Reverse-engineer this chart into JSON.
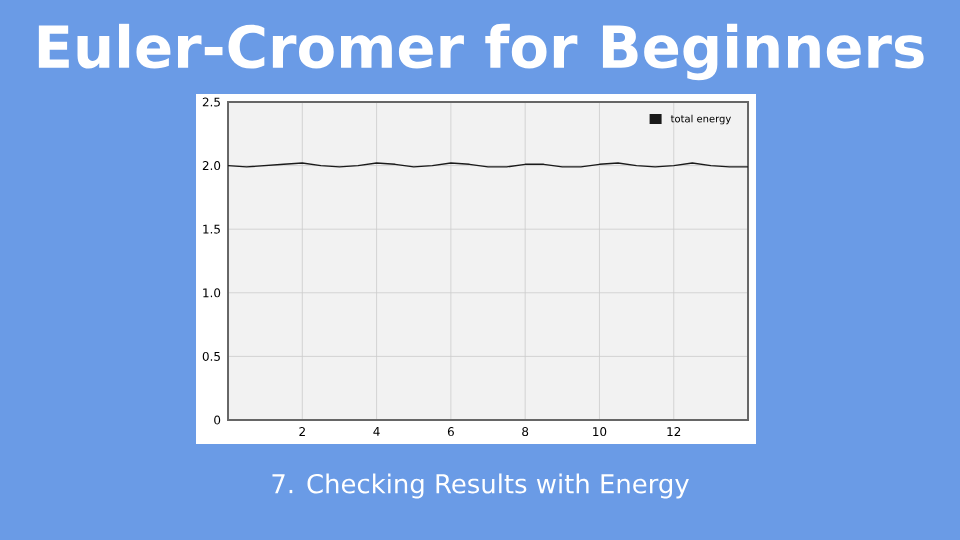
{
  "chart_data": {
    "type": "line",
    "title": "Euler-Cromer for Beginners",
    "subtitle": "7. Checking Results with Energy",
    "series": [
      {
        "name": "total energy",
        "color": "#1a1a1a",
        "x": [
          0,
          0.5,
          1,
          1.5,
          2,
          2.5,
          3,
          3.5,
          4,
          4.5,
          5,
          5.5,
          6,
          6.5,
          7,
          7.5,
          8,
          8.5,
          9,
          9.5,
          10,
          10.5,
          11,
          11.5,
          12,
          12.5,
          13,
          13.5,
          14
        ],
        "values": [
          2.0,
          1.99,
          2.0,
          2.01,
          2.02,
          2.0,
          1.99,
          2.0,
          2.02,
          2.01,
          1.99,
          2.0,
          2.02,
          2.01,
          1.99,
          1.99,
          2.01,
          2.01,
          1.99,
          1.99,
          2.01,
          2.02,
          2.0,
          1.99,
          2.0,
          2.02,
          2.0,
          1.99,
          1.99
        ]
      }
    ],
    "xlim": [
      0,
      14
    ],
    "xticks": [
      2,
      4,
      6,
      8,
      10,
      12
    ],
    "ylim": [
      0,
      2.5
    ],
    "yticks": [
      0,
      0.5,
      {
        "value": 1,
        "label": "1.0"
      },
      1.5,
      {
        "value": 2,
        "label": "2.0"
      },
      2.5
    ],
    "grid": true,
    "legend": "top right",
    "marker": "none",
    "line_style": "solid"
  }
}
